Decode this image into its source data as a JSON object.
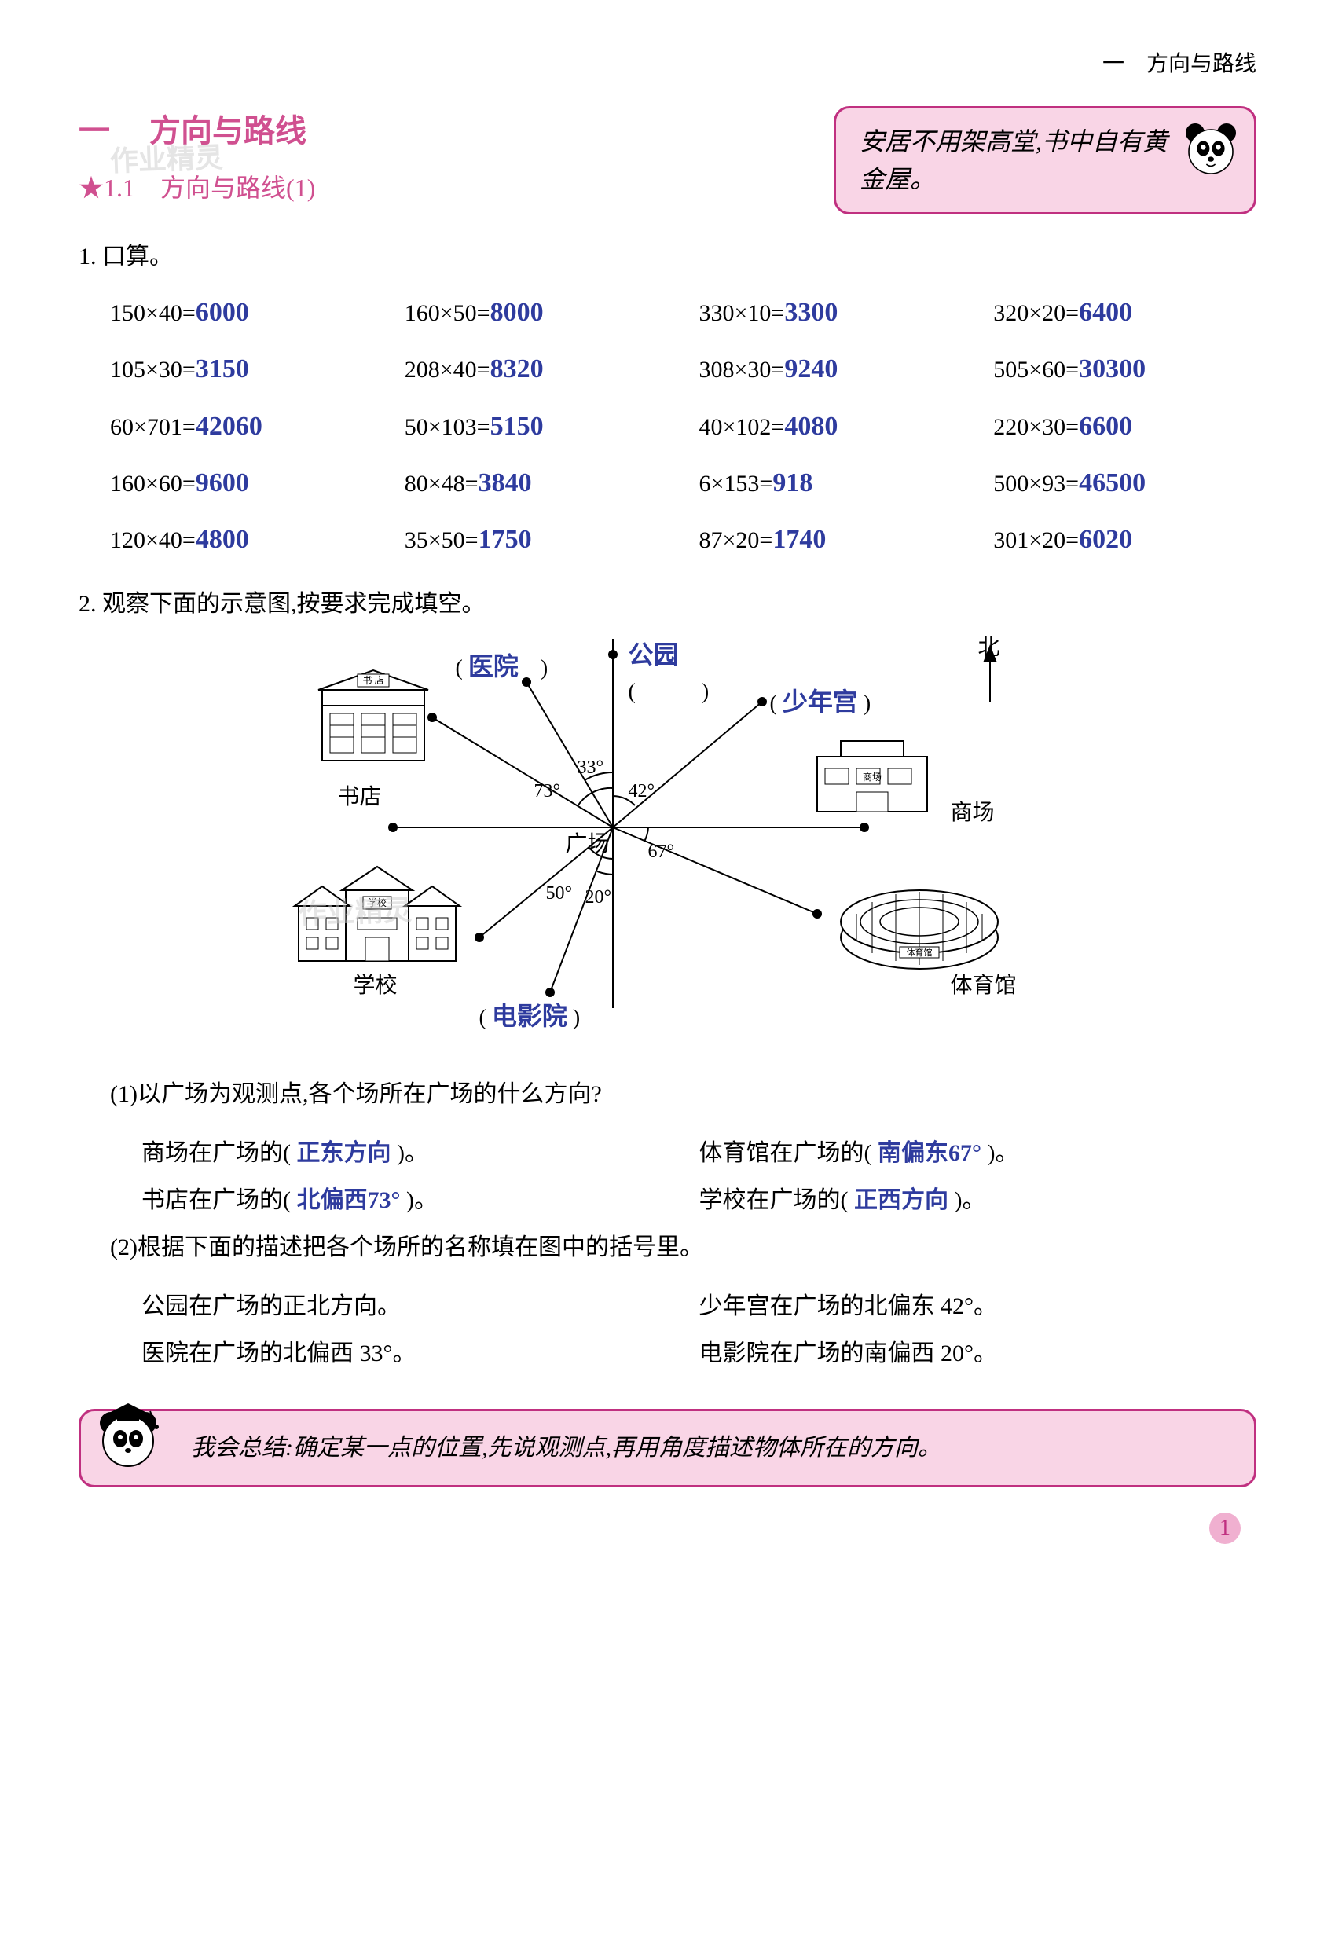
{
  "header": {
    "breadcrumb": "一　方向与路线"
  },
  "chapter": {
    "number": "一",
    "title": "方向与路线",
    "subtitle_prefix": "★1.1",
    "subtitle": "方向与路线(1)"
  },
  "callout": {
    "line1": "安居不用架高堂,书中自有黄",
    "line2": "金屋。"
  },
  "q1": {
    "heading": "1. 口算。",
    "items": [
      {
        "problem": "150×40=",
        "answer": "6000"
      },
      {
        "problem": "160×50=",
        "answer": "8000"
      },
      {
        "problem": "330×10=",
        "answer": "3300"
      },
      {
        "problem": "320×20=",
        "answer": "6400"
      },
      {
        "problem": "105×30=",
        "answer": "3150"
      },
      {
        "problem": "208×40=",
        "answer": "8320"
      },
      {
        "problem": "308×30=",
        "answer": "9240"
      },
      {
        "problem": "505×60=",
        "answer": "30300"
      },
      {
        "problem": "60×701=",
        "answer": "42060"
      },
      {
        "problem": "50×103=",
        "answer": "5150"
      },
      {
        "problem": "40×102=",
        "answer": "4080"
      },
      {
        "problem": "220×30=",
        "answer": "6600"
      },
      {
        "problem": "160×60=",
        "answer": "9600"
      },
      {
        "problem": "80×48=",
        "answer": "3840"
      },
      {
        "problem": "6×153=",
        "answer": "918"
      },
      {
        "problem": "500×93=",
        "answer": "46500"
      },
      {
        "problem": "120×40=",
        "answer": "4800"
      },
      {
        "problem": "35×50=",
        "answer": "1750"
      },
      {
        "problem": "87×20=",
        "answer": "1740"
      },
      {
        "problem": "301×20=",
        "answer": "6020"
      }
    ]
  },
  "q2": {
    "heading": "2. 观察下面的示意图,按要求完成填空。",
    "diagram": {
      "north": "北",
      "center": "广场",
      "angles": {
        "a73": "73°",
        "a33": "33°",
        "a42": "42°",
        "a67": "67°",
        "a50": "50°",
        "a20": "20°"
      },
      "places": {
        "bookstore": "书店",
        "bookstore_sign": "书 店",
        "hospital": "医院",
        "park": "公园",
        "youthpalace": "少年宫",
        "mall": "商场",
        "mall_sign": "商场",
        "stadium": "体育馆",
        "stadium_sign": "体育馆",
        "school": "学校",
        "school_sign": "学校",
        "cinema": "电影院"
      }
    },
    "part1": {
      "heading": "(1)以广场为观测点,各个场所在广场的什么方向?",
      "a1_pre": "商场在广场的(",
      "a1_ans": " 正东方向 ",
      "a1_post": ")。",
      "a2_pre": "体育馆在广场的(",
      "a2_ans": " 南偏东67° ",
      "a2_post": ")。",
      "a3_pre": "书店在广场的(",
      "a3_ans": " 北偏西73° ",
      "a3_post": ")。",
      "a4_pre": "学校在广场的(",
      "a4_ans": " 正西方向 ",
      "a4_post": ")。"
    },
    "part2": {
      "heading": "(2)根据下面的描述把各个场所的名称填在图中的括号里。",
      "s1": "公园在广场的正北方向。",
      "s2": "少年宫在广场的北偏东 42°。",
      "s3": "医院在广场的北偏西 33°。",
      "s4": "电影院在广场的南偏西 20°。"
    }
  },
  "summary": {
    "text": "我会总结:确定某一点的位置,先说观测点,再用角度描述物体所在的方向。"
  },
  "page": "1",
  "colors": {
    "pink": "#d05090",
    "blue": "#2e3b9e",
    "boxbg": "#f9d5e6",
    "boxborder": "#c03080"
  }
}
